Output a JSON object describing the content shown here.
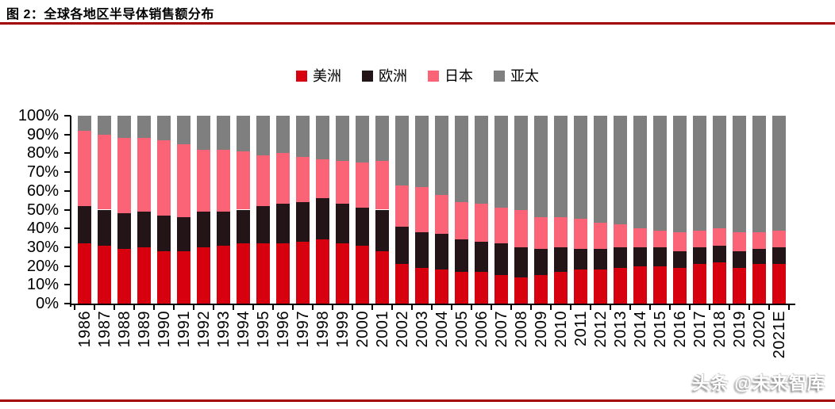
{
  "header": {
    "title": "图 2：全球各地区半导体销售额分布"
  },
  "watermark": {
    "text": "头条 @未来智库"
  },
  "colors": {
    "accent_rule": "#a30000",
    "axis": "#000000",
    "americas": "#d6000f",
    "europe": "#231517",
    "japan": "#fb6377",
    "asia_pacific": "#7f7f7f"
  },
  "chart_data": {
    "type": "bar",
    "stacked": true,
    "units": "percent_share",
    "title": "全球各地区半导体销售额分布",
    "legend_position": "top-center",
    "grid": false,
    "ylim": [
      0,
      100
    ],
    "ytick_step": 10,
    "yticks": [
      "0%",
      "10%",
      "20%",
      "30%",
      "40%",
      "50%",
      "60%",
      "70%",
      "80%",
      "90%",
      "100%"
    ],
    "categories": [
      "1986",
      "1987",
      "1988",
      "1989",
      "1990",
      "1991",
      "1992",
      "1993",
      "1994",
      "1995",
      "1996",
      "1997",
      "1998",
      "1999",
      "2000",
      "2001",
      "2002",
      "2003",
      "2004",
      "2005",
      "2006",
      "2007",
      "2008",
      "2009",
      "2010",
      "2011",
      "2012",
      "2013",
      "2014",
      "2015",
      "2016",
      "2017",
      "2018",
      "2019",
      "2020",
      "2021E"
    ],
    "series": [
      {
        "name": "美洲",
        "key": "americas",
        "color": "#d6000f",
        "values": [
          32,
          31,
          29,
          30,
          28,
          28,
          30,
          31,
          32,
          32,
          32,
          33,
          34,
          32,
          31,
          28,
          21,
          19,
          18,
          17,
          17,
          15,
          14,
          15,
          17,
          18,
          18,
          19,
          20,
          20,
          19,
          21,
          22,
          19,
          21,
          21
        ]
      },
      {
        "name": "欧洲",
        "key": "europe",
        "color": "#231517",
        "values": [
          20,
          19,
          19,
          19,
          19,
          18,
          19,
          18,
          18,
          20,
          21,
          21,
          22,
          21,
          20,
          22,
          20,
          19,
          19,
          17,
          16,
          17,
          16,
          14,
          13,
          11,
          11,
          11,
          10,
          10,
          9,
          9,
          9,
          9,
          8,
          9
        ]
      },
      {
        "name": "日本",
        "key": "japan",
        "color": "#fb6377",
        "values": [
          40,
          40,
          40,
          39,
          40,
          39,
          33,
          33,
          31,
          27,
          27,
          24,
          21,
          23,
          24,
          26,
          22,
          24,
          21,
          20,
          20,
          19,
          20,
          17,
          16,
          16,
          14,
          12,
          10,
          9,
          10,
          9,
          9,
          10,
          9,
          9
        ]
      },
      {
        "name": "亚太",
        "key": "asia-pacific",
        "color": "#7f7f7f",
        "values": [
          8,
          10,
          12,
          12,
          13,
          15,
          18,
          18,
          19,
          21,
          20,
          22,
          23,
          24,
          25,
          24,
          37,
          38,
          42,
          46,
          47,
          49,
          50,
          54,
          54,
          55,
          57,
          58,
          60,
          61,
          62,
          61,
          60,
          62,
          62,
          61
        ]
      }
    ]
  }
}
